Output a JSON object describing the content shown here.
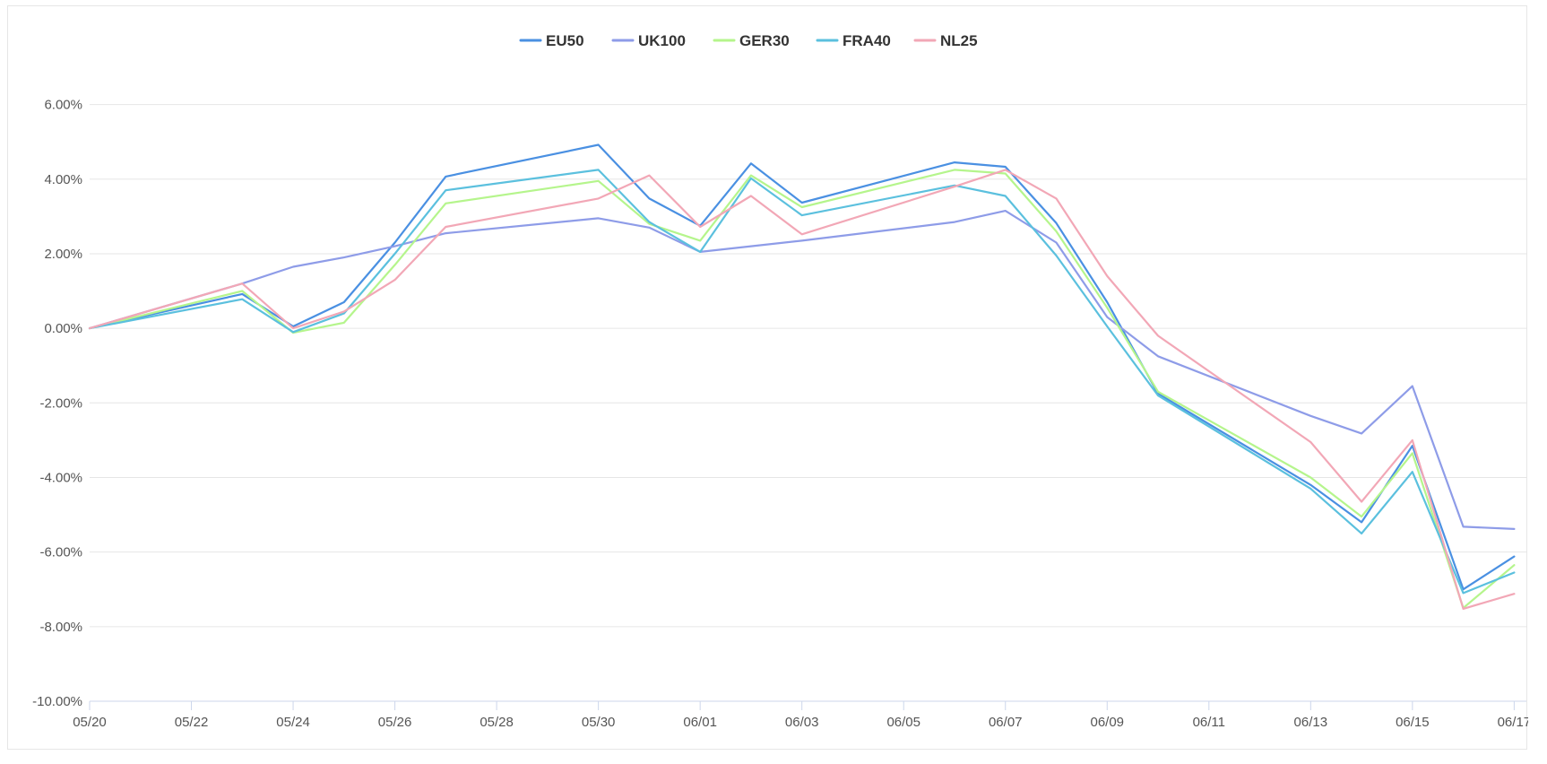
{
  "chart_data": {
    "type": "line",
    "title": "",
    "xlabel": "",
    "ylabel": "",
    "x_ticks": [
      "05/20",
      "05/22",
      "05/24",
      "05/26",
      "05/28",
      "05/30",
      "06/01",
      "06/03",
      "06/05",
      "06/07",
      "06/09",
      "06/11",
      "06/13",
      "06/15",
      "06/17"
    ],
    "y_ticks": [
      "6.00%",
      "4.00%",
      "2.00%",
      "0.00%",
      "-2.00%",
      "-4.00%",
      "-6.00%",
      "-8.00%",
      "-10.00%"
    ],
    "ylim": [
      -10,
      7
    ],
    "xlim": [
      "05/20",
      "06/17"
    ],
    "x_unit": "date (MM/DD)",
    "y_unit": "percent",
    "grid": "horizontal",
    "legend_position": "top-center",
    "x": [
      "05/20",
      "05/23",
      "05/24",
      "05/25",
      "05/26",
      "05/27",
      "05/30",
      "05/31",
      "06/01",
      "06/02",
      "06/03",
      "06/06",
      "06/07",
      "06/08",
      "06/09",
      "06/10",
      "06/13",
      "06/14",
      "06/15",
      "06/16",
      "06/17"
    ],
    "series": [
      {
        "name": "EU50",
        "color": "#4a90e2",
        "values": [
          0,
          0.92,
          0.05,
          0.7,
          2.3,
          4.07,
          4.92,
          3.48,
          2.75,
          4.42,
          3.37,
          4.45,
          4.33,
          2.82,
          0.7,
          -1.75,
          -4.2,
          -5.2,
          -3.15,
          -7.0,
          -6.12
        ]
      },
      {
        "name": "UK100",
        "color": "#8e9ce8",
        "values": [
          0,
          1.2,
          1.65,
          1.9,
          2.2,
          2.55,
          2.95,
          2.7,
          2.05,
          2.2,
          2.35,
          2.85,
          3.15,
          2.3,
          0.3,
          -0.75,
          -2.35,
          -2.82,
          -1.55,
          -5.32,
          -5.38
        ]
      },
      {
        "name": "GER30",
        "color": "#b5f58c",
        "values": [
          0,
          1.0,
          -0.12,
          0.15,
          1.7,
          3.35,
          3.95,
          2.8,
          2.35,
          4.1,
          3.25,
          4.25,
          4.15,
          2.6,
          0.55,
          -1.7,
          -4.0,
          -5.05,
          -3.35,
          -7.5,
          -6.35
        ]
      },
      {
        "name": "FRA40",
        "color": "#5bc0de",
        "values": [
          0,
          0.78,
          -0.1,
          0.4,
          2.0,
          3.7,
          4.25,
          2.85,
          2.05,
          4.02,
          3.03,
          3.83,
          3.55,
          1.95,
          0.05,
          -1.8,
          -4.3,
          -5.5,
          -3.85,
          -7.1,
          -6.55
        ]
      },
      {
        "name": "NL25",
        "color": "#f2a7b6",
        "values": [
          0,
          1.2,
          0.0,
          0.45,
          1.3,
          2.72,
          3.48,
          4.1,
          2.72,
          3.55,
          2.52,
          3.8,
          4.25,
          3.48,
          1.4,
          -0.2,
          -3.05,
          -4.65,
          -3.0,
          -7.52,
          -7.12
        ]
      }
    ]
  }
}
